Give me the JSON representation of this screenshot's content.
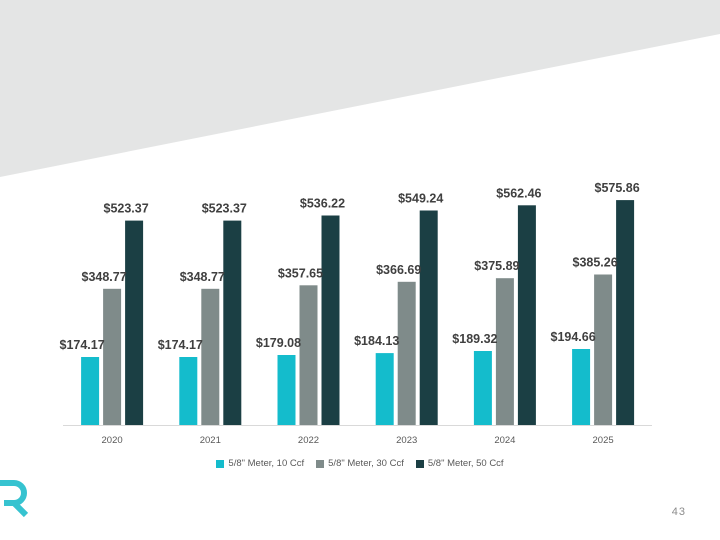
{
  "colors": {
    "banner": "#e4e5e5",
    "accent": "#36c3d0",
    "series": [
      "#14bccc",
      "#7f8b8a",
      "#1b3f44"
    ],
    "axis": "#d9d9d9"
  },
  "logo": {
    "icon": "company-logo-icon"
  },
  "page_number": "43",
  "chart_data": {
    "type": "bar",
    "title": "",
    "xlabel": "",
    "ylabel": "",
    "ylim": [
      0,
      640
    ],
    "grid": false,
    "legend_position": "bottom",
    "categories": [
      "2020",
      "2021",
      "2022",
      "2023",
      "2024",
      "2025"
    ],
    "series": [
      {
        "name": "5/8\" Meter, 10 Ccf",
        "values": [
          174.17,
          174.17,
          179.08,
          184.13,
          189.32,
          194.66
        ],
        "labels": [
          "$174.17",
          "$174.17",
          "$179.08",
          "$184.13",
          "$189.32",
          "$194.66"
        ]
      },
      {
        "name": "5/8\" Meter, 30 Ccf",
        "values": [
          348.77,
          348.77,
          357.65,
          366.69,
          375.89,
          385.26
        ],
        "labels": [
          "$348.77",
          "$348.77",
          "$357.65",
          "$366.69",
          "$375.89",
          "$385.26"
        ]
      },
      {
        "name": "5/8\" Meter, 50 Ccf",
        "values": [
          523.37,
          523.37,
          536.22,
          549.24,
          562.46,
          575.86
        ],
        "labels": [
          "$523.37",
          "$523.37",
          "$536.22",
          "$549.24",
          "$562.46",
          "$575.86"
        ]
      }
    ]
  }
}
